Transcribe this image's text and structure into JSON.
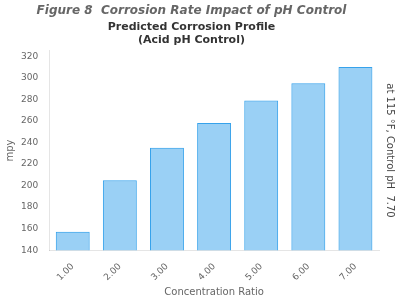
{
  "chart_data": {
    "type": "bar",
    "title": "Figure 8  Corrosion Rate Impact of pH Control",
    "subtitle": "Predicted Corrosion Profile\n(Acid pH Control)",
    "xlabel": "Concentration Ratio",
    "ylabel": "mpy",
    "annotations": [
      "at 115 °F, Control pH  7.70"
    ],
    "categories": [
      "1.00",
      "2.00",
      "3.00",
      "4.00",
      "5.00",
      "6.00",
      "7.00"
    ],
    "values": [
      157,
      205,
      235,
      258,
      279,
      295,
      310
    ],
    "ylim": [
      140,
      325
    ],
    "yticks": [
      140,
      160,
      180,
      200,
      220,
      240,
      260,
      280,
      300,
      320
    ],
    "grid": false
  }
}
